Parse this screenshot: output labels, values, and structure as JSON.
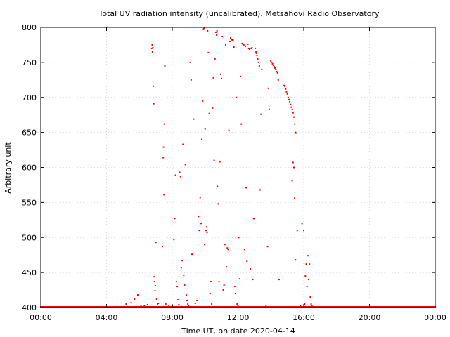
{
  "chart_data": {
    "type": "scatter",
    "title": "Total UV radiation intensity (uncalibrated). Metsähovi Radio Observatory",
    "xlabel": "Time UT, on date 2020-04-14",
    "ylabel": "Arbitrary unit",
    "xlim": [
      0,
      24
    ],
    "ylim": [
      400,
      800
    ],
    "grid": true,
    "marker_color": "#ff0000",
    "x_ticks": [
      {
        "value": 0,
        "label": "00:00"
      },
      {
        "value": 4,
        "label": "04:00"
      },
      {
        "value": 8,
        "label": "08:00"
      },
      {
        "value": 12,
        "label": "12:00"
      },
      {
        "value": 16,
        "label": "16:00"
      },
      {
        "value": 20,
        "label": "20:00"
      },
      {
        "value": 24,
        "label": "00:00"
      }
    ],
    "y_ticks": [
      {
        "value": 400,
        "label": "400"
      },
      {
        "value": 450,
        "label": "450"
      },
      {
        "value": 500,
        "label": "500"
      },
      {
        "value": 550,
        "label": "550"
      },
      {
        "value": 600,
        "label": "600"
      },
      {
        "value": 650,
        "label": "650"
      },
      {
        "value": 700,
        "label": "700"
      },
      {
        "value": 750,
        "label": "750"
      },
      {
        "value": 800,
        "label": "800"
      }
    ],
    "baseline": {
      "y": 401,
      "x_start": 0,
      "x_end": 24,
      "step": 0.05
    },
    "series": [
      {
        "points": [
          [
            5.2,
            405
          ],
          [
            5.5,
            407
          ],
          [
            5.7,
            412
          ],
          [
            5.9,
            418
          ],
          [
            6.1,
            402
          ],
          [
            6.3,
            403
          ],
          [
            6.5,
            404
          ],
          [
            6.75,
            770
          ],
          [
            6.78,
            775
          ],
          [
            6.8,
            765
          ],
          [
            6.82,
            771
          ],
          [
            6.85,
            716
          ],
          [
            6.87,
            691
          ],
          [
            6.9,
            444
          ],
          [
            6.92,
            437
          ],
          [
            6.95,
            424
          ],
          [
            6.97,
            431
          ],
          [
            7.0,
            493
          ],
          [
            7.05,
            412
          ],
          [
            7.1,
            405
          ],
          [
            7.15,
            406
          ],
          [
            7.4,
            487
          ],
          [
            7.45,
            614
          ],
          [
            7.47,
            629
          ],
          [
            7.5,
            561
          ],
          [
            7.52,
            662
          ],
          [
            7.55,
            745
          ],
          [
            7.6,
            405
          ],
          [
            7.8,
            402
          ],
          [
            8.0,
            403
          ],
          [
            8.1,
            497
          ],
          [
            8.15,
            527
          ],
          [
            8.2,
            589
          ],
          [
            8.25,
            437
          ],
          [
            8.3,
            430
          ],
          [
            8.35,
            411
          ],
          [
            8.4,
            404
          ],
          [
            8.45,
            593
          ],
          [
            8.5,
            587
          ],
          [
            8.55,
            457
          ],
          [
            8.6,
            467
          ],
          [
            8.65,
            633
          ],
          [
            8.7,
            446
          ],
          [
            8.75,
            432
          ],
          [
            8.8,
            604
          ],
          [
            8.85,
            418
          ],
          [
            8.9,
            410
          ],
          [
            8.95,
            405
          ],
          [
            9.0,
            402
          ],
          [
            9.1,
            750
          ],
          [
            9.15,
            725
          ],
          [
            9.2,
            476
          ],
          [
            9.3,
            669
          ],
          [
            9.4,
            406
          ],
          [
            9.5,
            410
          ],
          [
            9.6,
            530
          ],
          [
            9.65,
            510
          ],
          [
            9.7,
            557
          ],
          [
            9.75,
            520
          ],
          [
            9.8,
            640
          ],
          [
            9.85,
            695
          ],
          [
            9.9,
            797
          ],
          [
            9.92,
            798
          ],
          [
            9.95,
            800
          ],
          [
            9.97,
            490
          ],
          [
            10.0,
            655
          ],
          [
            10.05,
            510
          ],
          [
            10.1,
            515
          ],
          [
            10.12,
            507
          ],
          [
            10.15,
            795
          ],
          [
            10.2,
            764
          ],
          [
            10.25,
            677
          ],
          [
            10.3,
            420
          ],
          [
            10.35,
            437
          ],
          [
            10.4,
            405
          ],
          [
            10.45,
            685
          ],
          [
            10.5,
            728
          ],
          [
            10.55,
            610
          ],
          [
            10.6,
            755
          ],
          [
            10.65,
            793
          ],
          [
            10.7,
            789
          ],
          [
            10.72,
            795
          ],
          [
            10.75,
            573
          ],
          [
            10.8,
            548
          ],
          [
            10.85,
            437
          ],
          [
            10.9,
            608
          ],
          [
            10.95,
            733
          ],
          [
            11.0,
            727
          ],
          [
            11.05,
            787
          ],
          [
            11.1,
            425
          ],
          [
            11.15,
            432
          ],
          [
            11.2,
            490
          ],
          [
            11.25,
            775
          ],
          [
            11.3,
            458
          ],
          [
            11.35,
            485
          ],
          [
            11.4,
            483
          ],
          [
            11.45,
            653
          ],
          [
            11.5,
            780
          ],
          [
            11.55,
            785
          ],
          [
            11.6,
            783
          ],
          [
            11.65,
            782
          ],
          [
            11.7,
            782
          ],
          [
            11.75,
            772
          ],
          [
            11.8,
            430
          ],
          [
            11.85,
            420
          ],
          [
            11.9,
            700
          ],
          [
            11.95,
            405
          ],
          [
            12.0,
            402
          ],
          [
            12.05,
            500
          ],
          [
            12.1,
            441
          ],
          [
            12.15,
            730
          ],
          [
            12.2,
            662
          ],
          [
            12.25,
            777
          ],
          [
            12.3,
            776
          ],
          [
            12.35,
            775
          ],
          [
            12.4,
            483
          ],
          [
            12.45,
            773
          ],
          [
            12.5,
            571
          ],
          [
            12.55,
            466
          ],
          [
            12.6,
            776
          ],
          [
            12.65,
            770
          ],
          [
            12.7,
            769
          ],
          [
            12.75,
            455
          ],
          [
            12.8,
            770
          ],
          [
            12.85,
            771
          ],
          [
            12.9,
            440
          ],
          [
            12.95,
            527
          ],
          [
            13.0,
            527
          ],
          [
            13.05,
            770
          ],
          [
            13.1,
            765
          ],
          [
            13.12,
            763
          ],
          [
            13.15,
            760
          ],
          [
            13.2,
            755
          ],
          [
            13.25,
            750
          ],
          [
            13.3,
            745
          ],
          [
            13.35,
            568
          ],
          [
            13.4,
            676
          ],
          [
            13.45,
            740
          ],
          [
            13.7,
            402
          ],
          [
            13.8,
            487
          ],
          [
            13.85,
            713
          ],
          [
            13.9,
            683
          ],
          [
            14.0,
            752
          ],
          [
            14.05,
            750
          ],
          [
            14.1,
            748
          ],
          [
            14.15,
            746
          ],
          [
            14.2,
            744
          ],
          [
            14.25,
            742
          ],
          [
            14.3,
            740
          ],
          [
            14.35,
            737
          ],
          [
            14.4,
            735
          ],
          [
            14.45,
            725
          ],
          [
            14.5,
            440
          ],
          [
            14.8,
            717
          ],
          [
            14.85,
            716
          ],
          [
            14.9,
            712
          ],
          [
            14.95,
            708
          ],
          [
            15.0,
            705
          ],
          [
            15.05,
            700
          ],
          [
            15.1,
            697
          ],
          [
            15.15,
            694
          ],
          [
            15.2,
            690
          ],
          [
            15.25,
            686
          ],
          [
            15.3,
            683
          ],
          [
            15.35,
            678
          ],
          [
            15.4,
            672
          ],
          [
            15.45,
            662
          ],
          [
            15.5,
            650
          ],
          [
            15.52,
            649
          ],
          [
            15.3,
            581
          ],
          [
            15.35,
            607
          ],
          [
            15.4,
            600
          ],
          [
            15.45,
            556
          ],
          [
            15.5,
            468
          ],
          [
            15.6,
            510
          ],
          [
            15.8,
            402
          ],
          [
            15.9,
            520
          ],
          [
            16.0,
            510
          ],
          [
            16.05,
            405
          ],
          [
            16.1,
            445
          ],
          [
            16.15,
            462
          ],
          [
            16.2,
            430
          ],
          [
            16.25,
            474
          ],
          [
            16.3,
            440
          ],
          [
            16.35,
            462
          ],
          [
            16.4,
            415
          ],
          [
            16.45,
            405
          ],
          [
            16.5,
            402
          ]
        ]
      }
    ]
  }
}
